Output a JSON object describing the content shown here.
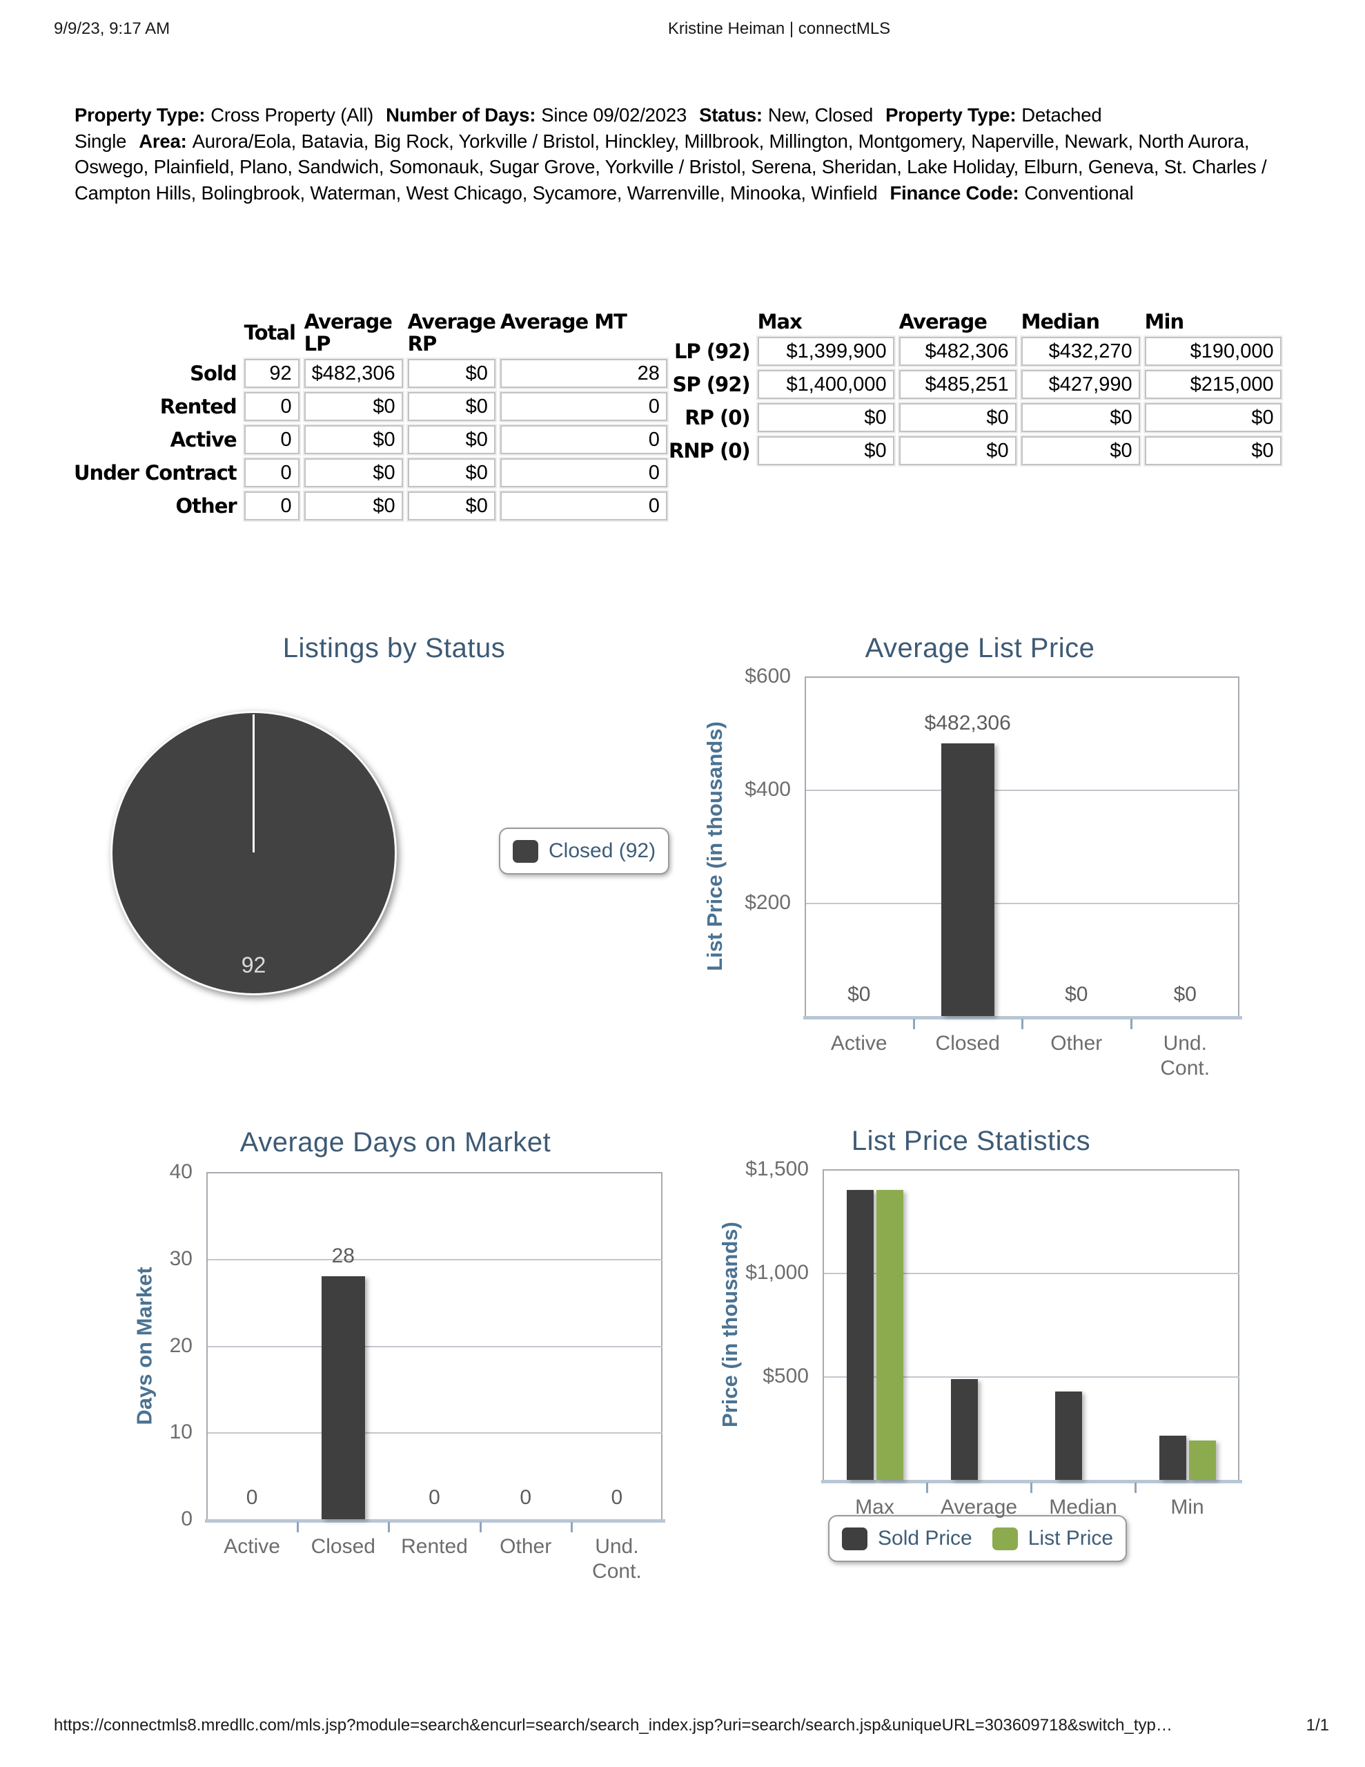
{
  "header": {
    "datetime": "9/9/23, 9:17 AM",
    "title": "Kristine Heiman | connectMLS"
  },
  "criteria": {
    "segments": [
      {
        "label": "Property Type:",
        "value": "Cross Property (All)"
      },
      {
        "label": "Number of Days:",
        "value": "Since 09/02/2023"
      },
      {
        "label": "Status:",
        "value": "New, Closed"
      },
      {
        "label": "Property Type:",
        "value": "Detached Single"
      },
      {
        "label": "Area:",
        "value": "Aurora/Eola, Batavia, Big Rock, Yorkville / Bristol, Hinckley, Millbrook, Millington, Montgomery, Naperville, Newark, North Aurora, Oswego, Plainfield, Plano, Sandwich, Somonauk, Sugar Grove, Yorkville / Bristol, Serena, Sheridan, Lake Holiday, Elburn, Geneva, St. Charles / Campton Hills, Bolingbrook, Waterman, West Chicago, Sycamore, Warrenville, Minooka, Winfield"
      },
      {
        "label": "Finance Code:",
        "value": "Conventional"
      }
    ]
  },
  "summary_table": {
    "headers": [
      "Total",
      "Average LP",
      "Average RP",
      "Average MT"
    ],
    "rows": [
      {
        "label": "Sold",
        "values": [
          "92",
          "$482,306",
          "$0",
          "28"
        ]
      },
      {
        "label": "Rented",
        "values": [
          "0",
          "$0",
          "$0",
          "0"
        ]
      },
      {
        "label": "Active",
        "values": [
          "0",
          "$0",
          "$0",
          "0"
        ]
      },
      {
        "label": "Under Contract",
        "values": [
          "0",
          "$0",
          "$0",
          "0"
        ]
      },
      {
        "label": "Other",
        "values": [
          "0",
          "$0",
          "$0",
          "0"
        ]
      }
    ]
  },
  "price_table": {
    "headers": [
      "Max",
      "Average",
      "Median",
      "Min"
    ],
    "rows": [
      {
        "label": "LP (92)",
        "values": [
          "$1,399,900",
          "$482,306",
          "$432,270",
          "$190,000"
        ]
      },
      {
        "label": "SP (92)",
        "values": [
          "$1,400,000",
          "$485,251",
          "$427,990",
          "$215,000"
        ]
      },
      {
        "label": "RP (0)",
        "values": [
          "$0",
          "$0",
          "$0",
          "$0"
        ]
      },
      {
        "label": "RNP (0)",
        "values": [
          "$0",
          "$0",
          "$0",
          "$0"
        ]
      }
    ]
  },
  "chart_data": [
    {
      "type": "pie",
      "title": "Listings by Status",
      "labels": [
        "Closed"
      ],
      "values": [
        92
      ],
      "slice_label": "92",
      "legend_label": "Closed (92)",
      "color": "#424242",
      "legend_position": "right"
    },
    {
      "type": "bar",
      "title": "Average List Price",
      "ylabel": "List Price (in thousands)",
      "categories": [
        "Active",
        "Closed",
        "Other",
        "Und.\nCont."
      ],
      "values": [
        0,
        482.306,
        0,
        0
      ],
      "value_labels": [
        "$0",
        "$482,306",
        "$0",
        "$0"
      ],
      "yticks": [
        {
          "label": "$600",
          "value": 600
        },
        {
          "label": "$400",
          "value": 400
        },
        {
          "label": "$200",
          "value": 200
        }
      ],
      "ylim": [
        0,
        600
      ],
      "bar_color": "#3f3f3f",
      "grid": true
    },
    {
      "type": "bar",
      "title": "Average Days on Market",
      "ylabel": "Days on Market",
      "categories": [
        "Active",
        "Closed",
        "Rented",
        "Other",
        "Und.\nCont."
      ],
      "values": [
        0,
        28,
        0,
        0,
        0
      ],
      "value_labels": [
        "0",
        "28",
        "0",
        "0",
        "0"
      ],
      "yticks": [
        {
          "label": "40",
          "value": 40
        },
        {
          "label": "30",
          "value": 30
        },
        {
          "label": "20",
          "value": 20
        },
        {
          "label": "10",
          "value": 10
        },
        {
          "label": "0",
          "value": 0
        }
      ],
      "ylim": [
        0,
        40
      ],
      "bar_color": "#3f3f3f",
      "grid": true
    },
    {
      "type": "bar",
      "title": "List Price Statistics",
      "ylabel": "Price (in thousands)",
      "categories": [
        "Max",
        "Average",
        "Median",
        "Min"
      ],
      "series": [
        {
          "name": "Sold Price",
          "color": "#3f3f3f",
          "values": [
            1400,
            485.251,
            427.99,
            215
          ]
        },
        {
          "name": "List Price",
          "color": "#8cab4f",
          "values": [
            1399.9,
            null,
            null,
            190
          ]
        }
      ],
      "yticks": [
        {
          "label": "$1,500",
          "value": 1500
        },
        {
          "label": "$1,000",
          "value": 1000
        },
        {
          "label": "$500",
          "value": 500
        }
      ],
      "ylim": [
        0,
        1500
      ],
      "grid": true,
      "legend_position": "bottom"
    }
  ],
  "footer": {
    "url": "https://connectmls8.mredllc.com/mls.jsp?module=search&encurl=search/search_index.jsp?uri=search/search.jsp&uniqueURL=303609718&switch_typ…",
    "page": "1/1"
  },
  "colors": {
    "accent_blue": "#3d5a75",
    "bar_dark": "#3f3f3f",
    "bar_green": "#8cab4f"
  }
}
